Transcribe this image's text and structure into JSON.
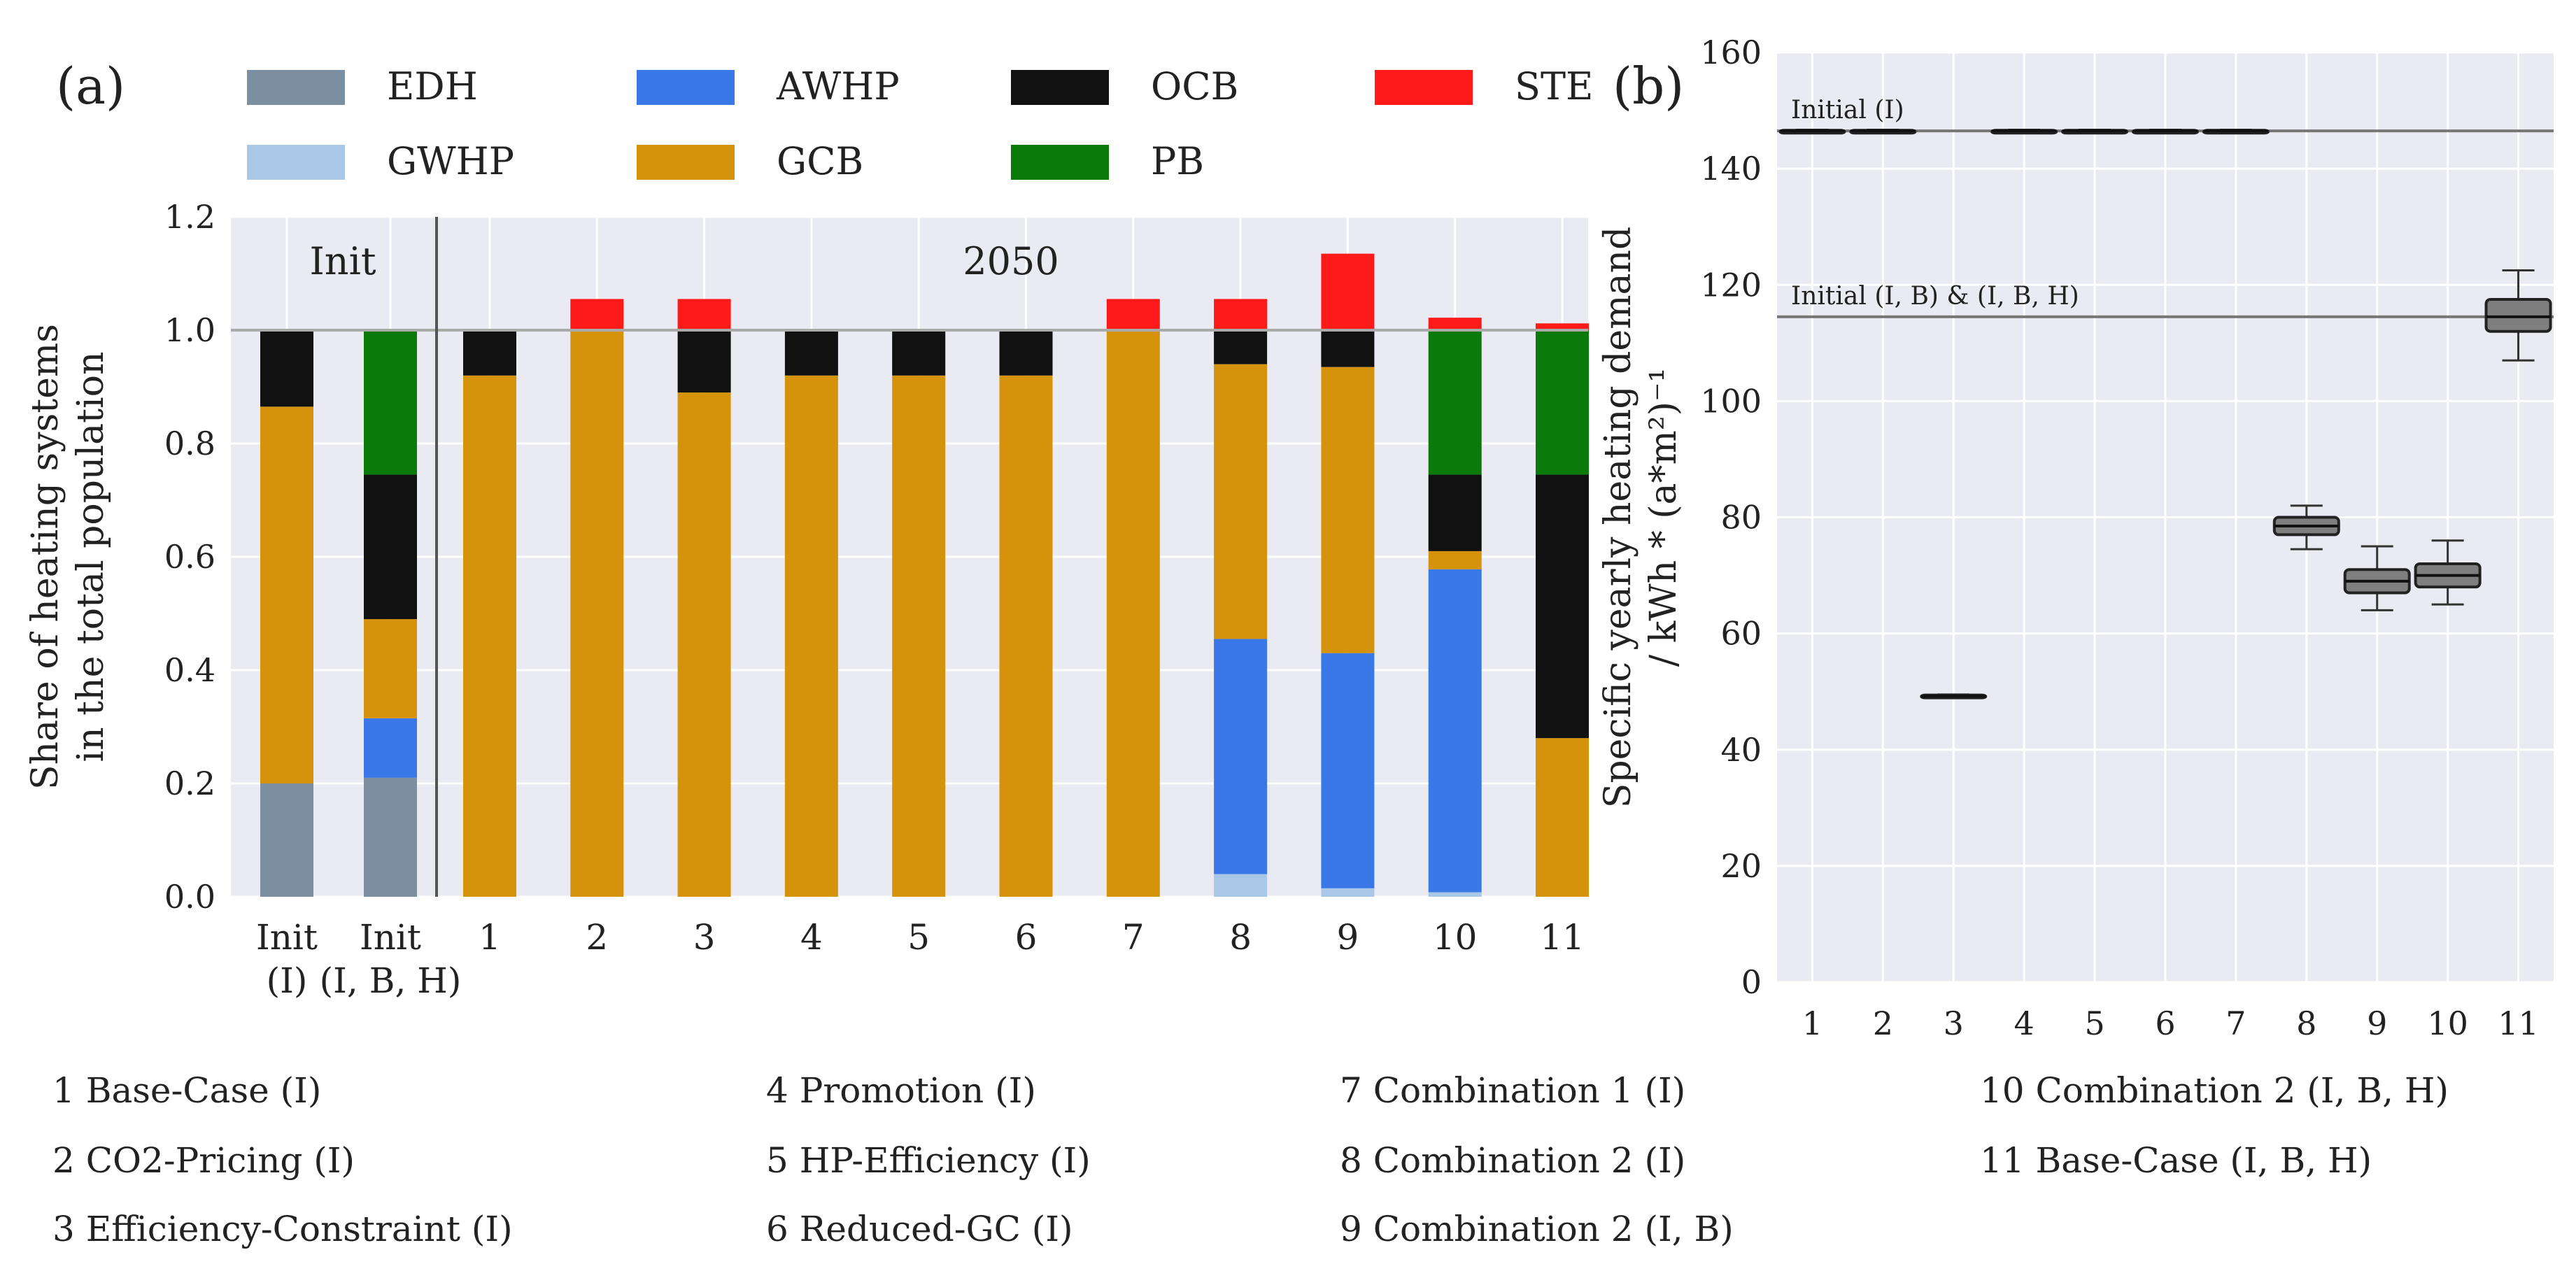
{
  "chart_data": [
    {
      "panel_label": "(a)",
      "type": "bar",
      "stacked": true,
      "categories": [
        "Init\n(I)",
        "Init\n(I, B, H)",
        "1",
        "2",
        "3",
        "4",
        "5",
        "6",
        "7",
        "8",
        "9",
        "10",
        "11"
      ],
      "series": [
        {
          "name": "GWHP",
          "color": "#a9c8e8",
          "values": [
            0,
            0,
            0,
            0,
            0,
            0,
            0,
            0,
            0,
            0.04,
            0.015,
            0.008,
            0
          ]
        },
        {
          "name": "EDH",
          "color": "#7b8fa1",
          "values": [
            0.2,
            0.21,
            0,
            0,
            0,
            0,
            0,
            0,
            0,
            0,
            0,
            0,
            0
          ]
        },
        {
          "name": "AWHP",
          "color": "#3b78e7",
          "values": [
            0,
            0.105,
            0,
            0,
            0,
            0,
            0,
            0,
            0,
            0.415,
            0.415,
            0.57,
            0
          ]
        },
        {
          "name": "GCB",
          "color": "#d4930a",
          "values": [
            0.665,
            0.175,
            0.92,
            1.0,
            0.89,
            0.92,
            0.92,
            0.92,
            1.0,
            0.485,
            0.505,
            0.032,
            0.28
          ]
        },
        {
          "name": "OCB",
          "color": "#111111",
          "values": [
            0.135,
            0.255,
            0.08,
            0,
            0.11,
            0.08,
            0.08,
            0.08,
            0,
            0.06,
            0.065,
            0.135,
            0.465
          ]
        },
        {
          "name": "PB",
          "color": "#0a7a0a",
          "values": [
            0,
            0.255,
            0,
            0,
            0,
            0,
            0,
            0,
            0,
            0,
            0,
            0.255,
            0.255
          ]
        },
        {
          "name": "STE",
          "color": "#ff1a1a",
          "values": [
            0,
            0,
            0,
            0.055,
            0.055,
            0,
            0,
            0,
            0.055,
            0.055,
            0.135,
            0.022,
            0.012
          ]
        }
      ],
      "legend_order": [
        "EDH",
        "AWHP",
        "OCB",
        "STE",
        "GWHP",
        "GCB",
        "PB"
      ],
      "title": "",
      "xlabel": "",
      "ylabel_lines": [
        "Share of heating systems",
        "in the total population"
      ],
      "ylim": [
        0,
        1.2
      ],
      "yticks": [
        0.0,
        0.2,
        0.4,
        0.6,
        0.8,
        1.0,
        1.2
      ],
      "ytick_labels": [
        "0.0",
        "0.2",
        "0.4",
        "0.6",
        "0.8",
        "1.0",
        "1.2"
      ],
      "reference_line": 1.0,
      "annotations": [
        "Init",
        "2050"
      ],
      "grid": true
    },
    {
      "panel_label": "(b)",
      "type": "box",
      "categories": [
        "1",
        "2",
        "3",
        "4",
        "5",
        "6",
        "7",
        "8",
        "9",
        "10",
        "11"
      ],
      "boxes": [
        {
          "q1": 146.4,
          "median": 146.5,
          "q3": 146.6,
          "whisker_low": 146.3,
          "whisker_high": 146.7
        },
        {
          "q1": 146.4,
          "median": 146.5,
          "q3": 146.6,
          "whisker_low": 146.3,
          "whisker_high": 146.7
        },
        {
          "q1": 49.0,
          "median": 49.2,
          "q3": 49.4,
          "whisker_low": 48.9,
          "whisker_high": 49.5
        },
        {
          "q1": 146.4,
          "median": 146.5,
          "q3": 146.6,
          "whisker_low": 146.3,
          "whisker_high": 146.7
        },
        {
          "q1": 146.4,
          "median": 146.5,
          "q3": 146.6,
          "whisker_low": 146.3,
          "whisker_high": 146.7
        },
        {
          "q1": 146.4,
          "median": 146.5,
          "q3": 146.6,
          "whisker_low": 146.3,
          "whisker_high": 146.7
        },
        {
          "q1": 146.4,
          "median": 146.5,
          "q3": 146.6,
          "whisker_low": 146.3,
          "whisker_high": 146.7
        },
        {
          "q1": 77.0,
          "median": 78.5,
          "q3": 80.0,
          "whisker_low": 74.5,
          "whisker_high": 82.0
        },
        {
          "q1": 67.0,
          "median": 69.0,
          "q3": 71.0,
          "whisker_low": 64.0,
          "whisker_high": 75.0
        },
        {
          "q1": 68.0,
          "median": 70.0,
          "q3": 72.0,
          "whisker_low": 65.0,
          "whisker_high": 76.0
        },
        {
          "q1": 112.0,
          "median": 114.5,
          "q3": 117.5,
          "whisker_low": 107.0,
          "whisker_high": 122.5
        }
      ],
      "box_color": "#7f7f7f",
      "reference_lines": [
        {
          "value": 146.5,
          "label": "Initial (I)"
        },
        {
          "value": 114.5,
          "label": "Initial (I, B) & (I, B, H)"
        }
      ],
      "title": "",
      "xlabel": "",
      "ylabel_lines": [
        "Specific yearly heating demand",
        "/ kWh * (a*m²)⁻¹"
      ],
      "ylim": [
        0,
        160
      ],
      "yticks": [
        0,
        20,
        40,
        60,
        80,
        100,
        120,
        140,
        160
      ],
      "ytick_labels": [
        "0",
        "20",
        "40",
        "60",
        "80",
        "100",
        "120",
        "140",
        "160"
      ],
      "grid": true
    }
  ],
  "scenario_legend": [
    "1 Base-Case (I)",
    "2 CO2-Pricing (I)",
    "3 Efficiency-Constraint (I)",
    "4 Promotion (I)",
    "5 HP-Efficiency (I)",
    "6 Reduced-GC (I)",
    "7 Combination 1 (I)",
    "8 Combination 2 (I)",
    "9 Combination 2 (I, B)",
    "10 Combination 2 (I, B, H)",
    "11 Base-Case (I, B, H)"
  ]
}
